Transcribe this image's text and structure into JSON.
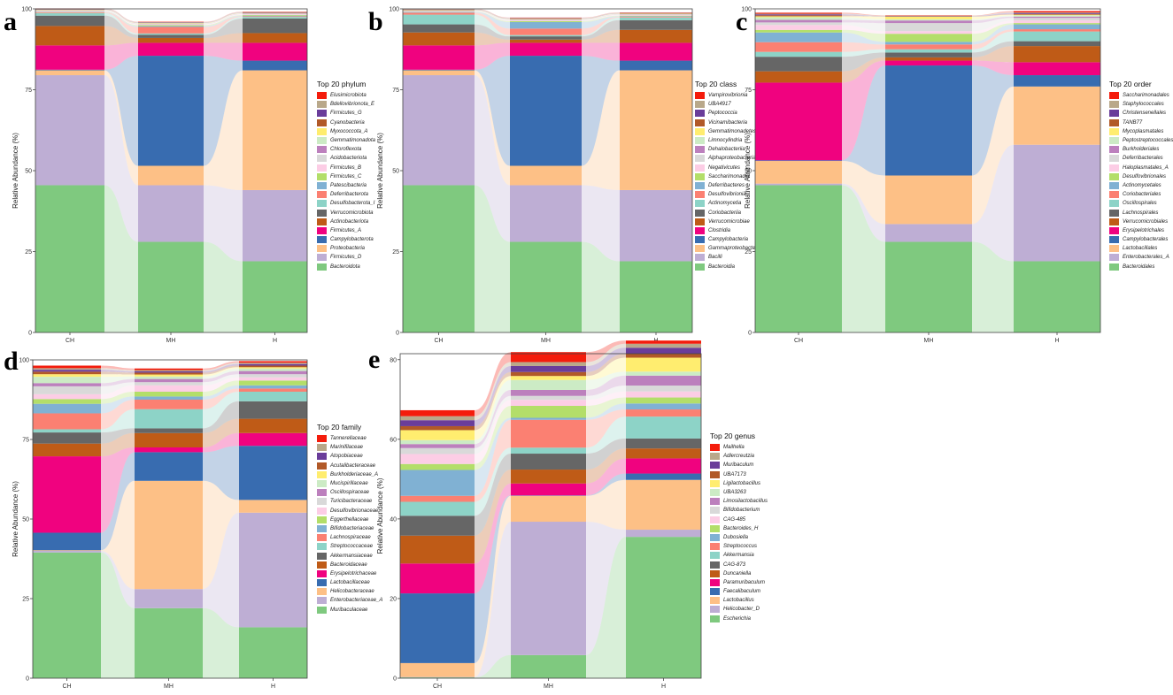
{
  "chart_data": [
    {
      "panel": "a",
      "type": "alluvial-stacked-bar",
      "legend_title": "Top 20 phylum",
      "ylabel": "Relative Abundance (%)",
      "ylim": [
        0,
        100
      ],
      "yticks": [
        0,
        25,
        50,
        75,
        100
      ],
      "categories": [
        "CH",
        "MH",
        "H"
      ],
      "series": [
        {
          "name": "Bacteroidota",
          "color": "#7fc97f",
          "values": [
            45.5,
            28,
            22
          ]
        },
        {
          "name": "Firmicutes_D",
          "color": "#beaed4",
          "values": [
            34,
            17.5,
            22
          ]
        },
        {
          "name": "Proteobacteria",
          "color": "#fdc086",
          "values": [
            1.5,
            6,
            37
          ]
        },
        {
          "name": "Campylobacterota",
          "color": "#386cb0",
          "values": [
            0.2,
            34,
            3
          ]
        },
        {
          "name": "Firmicutes_A",
          "color": "#f0027f",
          "values": [
            7.5,
            4,
            5.5
          ]
        },
        {
          "name": "Actinobacteriota",
          "color": "#bf5b17",
          "values": [
            6,
            1.5,
            3
          ]
        },
        {
          "name": "Verrucomicrobiota",
          "color": "#666666",
          "values": [
            3.2,
            1,
            4.5
          ]
        },
        {
          "name": "Desulfobacterota_I",
          "color": "#8dd3c7",
          "values": [
            0.8,
            0.4,
            0.5
          ]
        },
        {
          "name": "Deferribacterota",
          "color": "#fb8072",
          "values": [
            0.2,
            2,
            0.2
          ]
        },
        {
          "name": "Patescibacteria",
          "color": "#80b1d3",
          "values": [
            0.1,
            0.3,
            0.2
          ]
        },
        {
          "name": "Firmicutes_C",
          "color": "#b3de69",
          "values": [
            0.1,
            0.3,
            0.2
          ]
        },
        {
          "name": "Firmicutes_B",
          "color": "#fccde5",
          "values": [
            0.2,
            0.2,
            0.2
          ]
        },
        {
          "name": "Acidobacteriota",
          "color": "#d9d9d9",
          "values": [
            0.1,
            0.1,
            0.1
          ]
        },
        {
          "name": "Chloroflexota",
          "color": "#bc80bd",
          "values": [
            0.1,
            0.1,
            0.1
          ]
        },
        {
          "name": "Gemmatimonadota",
          "color": "#ccebc5",
          "values": [
            0.1,
            0.1,
            0.1
          ]
        },
        {
          "name": "Myxococcota_A",
          "color": "#ffed6f",
          "values": [
            0.1,
            0.1,
            0.1
          ]
        },
        {
          "name": "Cyanobacteria",
          "color": "#b15928",
          "values": [
            0.1,
            0.1,
            0.1
          ]
        },
        {
          "name": "Firmicutes_G",
          "color": "#6a3d9a",
          "values": [
            0.1,
            0.1,
            0.1
          ]
        },
        {
          "name": "Bdellovibrionota_E",
          "color": "#b9a88a",
          "values": [
            0.1,
            0.1,
            0.1
          ]
        },
        {
          "name": "Elusimicrobiota",
          "color": "#f41c0c",
          "values": [
            0.1,
            0.1,
            0.1
          ]
        }
      ]
    },
    {
      "panel": "b",
      "type": "alluvial-stacked-bar",
      "legend_title": "Top 20 class",
      "ylabel": "Relative Abundance (%)",
      "ylim": [
        0,
        100
      ],
      "yticks": [
        0,
        25,
        50,
        75,
        100
      ],
      "categories": [
        "CH",
        "MH",
        "H"
      ],
      "series": [
        {
          "name": "Bacteroidia",
          "color": "#7fc97f",
          "values": [
            45.5,
            28,
            22
          ]
        },
        {
          "name": "Bacilli",
          "color": "#beaed4",
          "values": [
            34,
            17.5,
            22
          ]
        },
        {
          "name": "Gammaproteobacteria",
          "color": "#fdc086",
          "values": [
            1.5,
            6,
            37
          ]
        },
        {
          "name": "Campylobacteria",
          "color": "#386cb0",
          "values": [
            0.2,
            34,
            3
          ]
        },
        {
          "name": "Clostridia",
          "color": "#f0027f",
          "values": [
            7.5,
            4,
            5.5
          ]
        },
        {
          "name": "Verrucomicrobiae",
          "color": "#bf5b17",
          "values": [
            4,
            1,
            4
          ]
        },
        {
          "name": "Coriobacteriia",
          "color": "#666666",
          "values": [
            2.5,
            1,
            3
          ]
        },
        {
          "name": "Actinomycetia",
          "color": "#8dd3c7",
          "values": [
            3,
            0.4,
            0.8
          ]
        },
        {
          "name": "Desulfovibrionia",
          "color": "#fb8072",
          "values": [
            0.6,
            2,
            0.2
          ]
        },
        {
          "name": "Deferribacteres",
          "color": "#80b1d3",
          "values": [
            0.2,
            2,
            0.2
          ]
        },
        {
          "name": "Saccharimonadia",
          "color": "#b3de69",
          "values": [
            0.1,
            0.3,
            0.2
          ]
        },
        {
          "name": "Negativicutes",
          "color": "#fccde5",
          "values": [
            0.1,
            0.2,
            0.2
          ]
        },
        {
          "name": "Alphaproteobacteria",
          "color": "#d9d9d9",
          "values": [
            0.1,
            0.2,
            0.1
          ]
        },
        {
          "name": "Dehalobacteriia",
          "color": "#bc80bd",
          "values": [
            0.1,
            0.1,
            0.1
          ]
        },
        {
          "name": "Limnocylindria",
          "color": "#ccebc5",
          "values": [
            0.1,
            0.1,
            0.1
          ]
        },
        {
          "name": "Gemmatimonadetes",
          "color": "#ffed6f",
          "values": [
            0.1,
            0.1,
            0.1
          ]
        },
        {
          "name": "Vicinamibacteria",
          "color": "#b15928",
          "values": [
            0.1,
            0.1,
            0.1
          ]
        },
        {
          "name": "Peptococcia",
          "color": "#6a3d9a",
          "values": [
            0.1,
            0.1,
            0.1
          ]
        },
        {
          "name": "UBA4917",
          "color": "#b9a88a",
          "values": [
            0.1,
            0.1,
            0.1
          ]
        },
        {
          "name": "Vampirovibrionia",
          "color": "#f41c0c",
          "values": [
            0.1,
            0.1,
            0.1
          ]
        }
      ]
    },
    {
      "panel": "c",
      "type": "alluvial-stacked-bar",
      "legend_title": "Top 20 order",
      "ylabel": "Relative Abundance (%)",
      "ylim": [
        0,
        100
      ],
      "yticks": [
        0,
        25,
        50,
        75,
        100
      ],
      "categories": [
        "CH",
        "MH",
        "H"
      ],
      "series": [
        {
          "name": "Bacteroidales",
          "color": "#7fc97f",
          "values": [
            45.5,
            28,
            22
          ]
        },
        {
          "name": "Enterobacterales_A",
          "color": "#beaed4",
          "values": [
            0.5,
            5.5,
            36
          ]
        },
        {
          "name": "Lactobacillales",
          "color": "#fdc086",
          "values": [
            7,
            15,
            18
          ]
        },
        {
          "name": "Campylobacterales",
          "color": "#386cb0",
          "values": [
            0.2,
            34,
            3.5
          ]
        },
        {
          "name": "Erysipelotrichales",
          "color": "#f0027f",
          "values": [
            24,
            1.5,
            4
          ]
        },
        {
          "name": "Verrucomicrobiales",
          "color": "#bf5b17",
          "values": [
            3.5,
            1,
            5
          ]
        },
        {
          "name": "Lachnospirales",
          "color": "#666666",
          "values": [
            4.5,
            1.5,
            1.5
          ]
        },
        {
          "name": "Oscillospirales",
          "color": "#8dd3c7",
          "values": [
            1.5,
            1,
            3
          ]
        },
        {
          "name": "Coriobacteriales",
          "color": "#fb8072",
          "values": [
            3,
            1.5,
            0.7
          ]
        },
        {
          "name": "Actinomycetales",
          "color": "#80b1d3",
          "values": [
            3,
            0.8,
            1.5
          ]
        },
        {
          "name": "Desulfovibrionales",
          "color": "#b3de69",
          "values": [
            0.8,
            2.5,
            0.4
          ]
        },
        {
          "name": "Haloplasmatales_A",
          "color": "#fccde5",
          "values": [
            1.5,
            0.8,
            0.8
          ]
        },
        {
          "name": "Deferribacterales",
          "color": "#d9d9d9",
          "values": [
            0.8,
            2.5,
            0.8
          ]
        },
        {
          "name": "Burkholderiales",
          "color": "#bc80bd",
          "values": [
            0.8,
            0.8,
            0.4
          ]
        },
        {
          "name": "Peptostreptococcales",
          "color": "#ccebc5",
          "values": [
            0.8,
            0.4,
            0.4
          ]
        },
        {
          "name": "Mycoplasmatales",
          "color": "#ffed6f",
          "values": [
            0.3,
            0.8,
            0.2
          ]
        },
        {
          "name": "TANB77",
          "color": "#b15928",
          "values": [
            0.3,
            0.1,
            0.2
          ]
        },
        {
          "name": "Christensenellales",
          "color": "#6a3d9a",
          "values": [
            0.3,
            0.1,
            0.3
          ]
        },
        {
          "name": "Staphylococcales",
          "color": "#b9a88a",
          "values": [
            0.2,
            0.1,
            0.2
          ]
        },
        {
          "name": "Saccharimonadales",
          "color": "#f41c0c",
          "values": [
            0.3,
            0.1,
            0.4
          ]
        }
      ]
    },
    {
      "panel": "d",
      "type": "alluvial-stacked-bar",
      "legend_title": "Top 20 family",
      "ylabel": "Relative Abundance (%)",
      "ylim": [
        0,
        100
      ],
      "yticks": [
        0,
        25,
        50,
        75,
        100
      ],
      "categories": [
        "CH",
        "MH",
        "H"
      ],
      "series": [
        {
          "name": "Muribaculaceae",
          "color": "#7fc97f",
          "values": [
            39.5,
            22,
            16
          ]
        },
        {
          "name": "Enterobacteriaceae_A",
          "color": "#beaed4",
          "values": [
            0.5,
            6,
            36
          ]
        },
        {
          "name": "Helicobacteraceae",
          "color": "#fdc086",
          "values": [
            0.2,
            34,
            4
          ]
        },
        {
          "name": "Lactobacillaceae",
          "color": "#386cb0",
          "values": [
            5.5,
            9,
            17
          ]
        },
        {
          "name": "Erysipelotrichaceae",
          "color": "#f0027f",
          "values": [
            24,
            1.5,
            4
          ]
        },
        {
          "name": "Bacteroidaceae",
          "color": "#bf5b17",
          "values": [
            4,
            4.5,
            4.5
          ]
        },
        {
          "name": "Akkermansiaceae",
          "color": "#666666",
          "values": [
            3.5,
            1.5,
            5.5
          ]
        },
        {
          "name": "Streptococcaceae",
          "color": "#8dd3c7",
          "values": [
            1,
            6,
            3
          ]
        },
        {
          "name": "Lachnospiraceae",
          "color": "#fb8072",
          "values": [
            5,
            3,
            1
          ]
        },
        {
          "name": "Bifidobacteriaceae",
          "color": "#80b1d3",
          "values": [
            3,
            1,
            1
          ]
        },
        {
          "name": "Eggerthellaceae",
          "color": "#b3de69",
          "values": [
            1.5,
            1.5,
            1.5
          ]
        },
        {
          "name": "Desulfovibrionaceae",
          "color": "#fccde5",
          "values": [
            1.5,
            2,
            1
          ]
        },
        {
          "name": "Turicibacteraceae",
          "color": "#d9d9d9",
          "values": [
            2.5,
            1,
            1
          ]
        },
        {
          "name": "Oscillospiraceae",
          "color": "#bc80bd",
          "values": [
            1,
            1,
            1
          ]
        },
        {
          "name": "Mucispirillaceae",
          "color": "#ccebc5",
          "values": [
            2,
            0.8,
            0.8
          ]
        },
        {
          "name": "Burkholderiaceae_A",
          "color": "#ffed6f",
          "values": [
            0.8,
            0.6,
            0.4
          ]
        },
        {
          "name": "Acutalibacteraceae",
          "color": "#b15928",
          "values": [
            0.8,
            0.6,
            0.5
          ]
        },
        {
          "name": "Atopobiaceae",
          "color": "#6a3d9a",
          "values": [
            0.6,
            0.4,
            0.5
          ]
        },
        {
          "name": "Marinifilaceae",
          "color": "#b9a88a",
          "values": [
            0.5,
            0.4,
            0.4
          ]
        },
        {
          "name": "Tannerellaceae",
          "color": "#f41c0c",
          "values": [
            0.8,
            0.5,
            0.5
          ]
        }
      ]
    },
    {
      "panel": "e",
      "type": "alluvial-stacked-bar",
      "legend_title": "Top 20 genus",
      "ylabel": "Relative Abundance (%)",
      "ylim": [
        0,
        81.5
      ],
      "yticks": [
        0,
        20,
        40,
        60,
        80
      ],
      "categories": [
        "CH",
        "MH",
        "H"
      ],
      "series": [
        {
          "name": "Escherichia",
          "color": "#7fc97f",
          "values": [
            0.2,
            5.8,
            35.5
          ]
        },
        {
          "name": "Helicobacter_D",
          "color": "#beaed4",
          "values": [
            0.1,
            33.5,
            1.8
          ]
        },
        {
          "name": "Lactobacillus",
          "color": "#fdc086",
          "values": [
            3.5,
            6.5,
            12.5
          ]
        },
        {
          "name": "Faecalibaculum",
          "color": "#386cb0",
          "values": [
            17.5,
            0.1,
            1.6
          ]
        },
        {
          "name": "Paramuribaculum",
          "color": "#f0027f",
          "values": [
            7.5,
            3,
            3.8
          ]
        },
        {
          "name": "Duncaniella",
          "color": "#bf5b17",
          "values": [
            7,
            3.5,
            2.5
          ]
        },
        {
          "name": "CAG-873",
          "color": "#666666",
          "values": [
            5,
            4,
            2.5
          ]
        },
        {
          "name": "Akkermansia",
          "color": "#8dd3c7",
          "values": [
            3.5,
            1.5,
            5.5
          ]
        },
        {
          "name": "Streptococcus",
          "color": "#fb8072",
          "values": [
            1.5,
            7,
            1.8
          ]
        },
        {
          "name": "Dubosiella",
          "color": "#80b1d3",
          "values": [
            6.5,
            0.5,
            1.5
          ]
        },
        {
          "name": "Bacteroides_H",
          "color": "#b3de69",
          "values": [
            1.5,
            3,
            1.5
          ]
        },
        {
          "name": "CAG-485",
          "color": "#fccde5",
          "values": [
            2.5,
            1.5,
            1.5
          ]
        },
        {
          "name": "Bifidobacterium",
          "color": "#d9d9d9",
          "values": [
            1.5,
            1,
            1.5
          ]
        },
        {
          "name": "Limosilactobacillus",
          "color": "#bc80bd",
          "values": [
            1,
            1.5,
            2.5
          ]
        },
        {
          "name": "UBA3263",
          "color": "#ccebc5",
          "values": [
            1,
            2.5,
            1
          ]
        },
        {
          "name": "Ligilactobacillus",
          "color": "#ffed6f",
          "values": [
            2.5,
            1,
            3.5
          ]
        },
        {
          "name": "UBA7173",
          "color": "#b15928",
          "values": [
            1,
            1,
            1
          ]
        },
        {
          "name": "Muribaculum",
          "color": "#6a3d9a",
          "values": [
            1.5,
            1.5,
            1.5
          ]
        },
        {
          "name": "Adlercreutzia",
          "color": "#b9a88a",
          "values": [
            1,
            1,
            1
          ]
        },
        {
          "name": "Mailhella",
          "color": "#f41c0c",
          "values": [
            1.5,
            2.5,
            0.8
          ]
        }
      ]
    }
  ]
}
